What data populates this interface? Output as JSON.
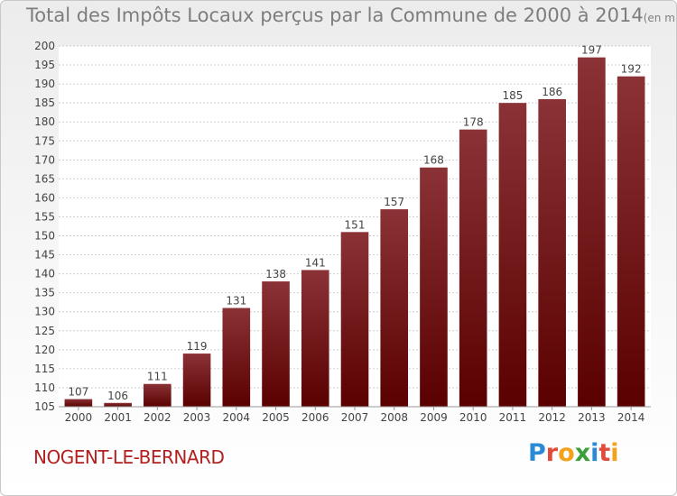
{
  "title": "Total des Impôts Locaux perçus par la Commune de 2000 à 2014",
  "title_unit": "(en milliers d'€)",
  "commune": "NOGENT-LE-BERNARD",
  "brand": {
    "letters": [
      "P",
      "r",
      "o",
      "x",
      "i",
      "t",
      "i"
    ],
    "colors": [
      "#2a8ad6",
      "#e04b3a",
      "#f3a21b",
      "#3aa03a",
      "#2a8ad6",
      "#e04b3a",
      "#f3a21b"
    ]
  },
  "colors": {
    "bar_top": "#8a3236",
    "bar_bottom": "#5a0000",
    "grid": "#cfcfcf",
    "text": "#444444"
  },
  "chart_data": {
    "type": "bar",
    "title": "Total des Impôts Locaux perçus par la Commune de 2000 à 2014",
    "categories": [
      "2000",
      "2001",
      "2002",
      "2003",
      "2004",
      "2005",
      "2006",
      "2007",
      "2008",
      "2009",
      "2010",
      "2011",
      "2012",
      "2013",
      "2014"
    ],
    "values": [
      107,
      106,
      111,
      119,
      131,
      138,
      141,
      151,
      157,
      168,
      178,
      185,
      186,
      197,
      192
    ],
    "ylim": [
      105,
      200
    ],
    "yticks": [
      105,
      110,
      115,
      120,
      125,
      130,
      135,
      140,
      145,
      150,
      155,
      160,
      165,
      170,
      175,
      180,
      185,
      190,
      195,
      200
    ],
    "grid": true,
    "xlabel": "",
    "ylabel": ""
  }
}
